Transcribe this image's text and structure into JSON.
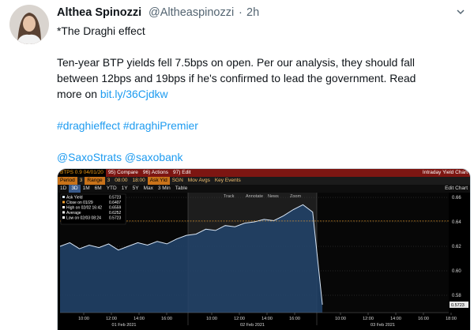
{
  "tweet": {
    "author": "Althea Spinozzi",
    "handle": "@Altheaspinozzi",
    "separator": "·",
    "time": "2h",
    "headline": "*The Draghi effect",
    "body_lines": [
      "Ten-year BTP yields fell 7.5bps on open. Per our analysis, they should fall",
      "between 12bps and 19bps if he's confirmed to lead the government. Read",
      "more on"
    ],
    "link": "bit.ly/36Cjdkw",
    "hashtags": [
      "#draghieffect",
      "#draghiPremier"
    ],
    "mentions": [
      "@SaxoStrats",
      "@saxobank"
    ]
  },
  "chart_data": {
    "type": "area",
    "security": "BTPS 0.9 04/01/20",
    "title": "Intraday Yield Chart",
    "menu": [
      "95) Compare",
      "96) Actions",
      "97) Edit"
    ],
    "settings": [
      "Period",
      "3",
      "Range",
      "3",
      "08:00",
      "18:00",
      "Ask Yld",
      "SGN",
      "Mov Avgs",
      "Key Events"
    ],
    "periods": [
      "1D",
      "3D",
      "1M",
      "6M",
      "YTD",
      "1Y",
      "5Y",
      "Max",
      "3 Min",
      "Table"
    ],
    "right_button": "Edit Chart",
    "tools": [
      "Track",
      "Annotate",
      "News",
      "Zoom"
    ],
    "series": [
      {
        "name": "Ask Yield",
        "color": "#d8e6f7",
        "fill": "#22446c",
        "values": [
          0.62,
          0.623,
          0.618,
          0.621,
          0.619,
          0.622,
          0.617,
          0.62,
          0.623,
          0.621,
          0.624,
          0.622,
          0.626,
          0.629,
          0.63,
          0.634,
          0.633,
          0.637,
          0.636,
          0.639,
          0.64,
          0.642,
          0.641,
          0.645,
          0.65,
          0.654,
          0.648,
          0.5723,
          null,
          null,
          null,
          null,
          null,
          null,
          null,
          null,
          null,
          null,
          null,
          null
        ]
      }
    ],
    "last_value": 0.5723,
    "stats": [
      {
        "label": "Close on 01/29",
        "value": 0.6407,
        "color": "#f0a030"
      },
      {
        "label": "High on 02/02 16:42",
        "value": 0.6559,
        "color": "#ffffff"
      },
      {
        "label": "Average",
        "value": 0.6252,
        "color": "#ffffff"
      },
      {
        "label": "Low on 02/03 08:24",
        "value": 0.5723,
        "color": "#ffffff"
      }
    ],
    "ylim": [
      0.5658,
      0.6639
    ],
    "yticks": [
      0.58,
      {
        "value": 0.6,
        "label": "0.60"
      },
      0.62,
      0.64,
      0.66
    ],
    "days": [
      {
        "label": "01 Feb 2021",
        "times": [
          "10:00",
          "12:00",
          "14:00",
          "16:00"
        ]
      },
      {
        "label": "02 Feb 2021",
        "times": [
          "10:00",
          "12:00",
          "14:00",
          "16:00"
        ]
      },
      {
        "label": "03 Feb 2021",
        "times": [
          "10:00",
          "12:00",
          "14:00",
          "16:00",
          "18:00"
        ]
      }
    ]
  }
}
